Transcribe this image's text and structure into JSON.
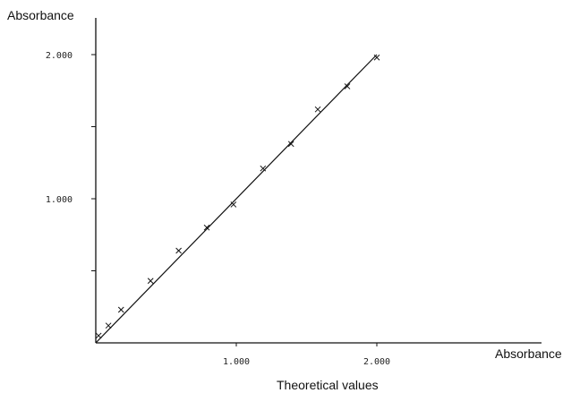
{
  "chart_data": {
    "type": "scatter",
    "ylabel": "Absorbance",
    "xlabel": "Absorbance",
    "xlabel_secondary": "Theoretical values",
    "xlim": [
      0,
      3.0
    ],
    "ylim": [
      0,
      2.0
    ],
    "x_ticks": [
      {
        "value": 1.0,
        "label": "1.000"
      },
      {
        "value": 2.0,
        "label": "2.000"
      }
    ],
    "y_ticks": [
      {
        "value": 0.5,
        "label": ""
      },
      {
        "value": 1.0,
        "label": "1.000"
      },
      {
        "value": 1.5,
        "label": ""
      },
      {
        "value": 2.0,
        "label": "2.000"
      }
    ],
    "grid": false,
    "fit_line": {
      "x": [
        0,
        2.0
      ],
      "y": [
        0,
        2.0
      ]
    },
    "points": [
      {
        "x": 0.02,
        "y": 0.05
      },
      {
        "x": 0.09,
        "y": 0.12
      },
      {
        "x": 0.18,
        "y": 0.23
      },
      {
        "x": 0.39,
        "y": 0.43
      },
      {
        "x": 0.59,
        "y": 0.64
      },
      {
        "x": 0.79,
        "y": 0.8
      },
      {
        "x": 0.98,
        "y": 0.96
      },
      {
        "x": 1.19,
        "y": 1.21
      },
      {
        "x": 1.39,
        "y": 1.38
      },
      {
        "x": 1.58,
        "y": 1.62
      },
      {
        "x": 1.79,
        "y": 1.78
      },
      {
        "x": 2.0,
        "y": 1.98
      }
    ]
  }
}
